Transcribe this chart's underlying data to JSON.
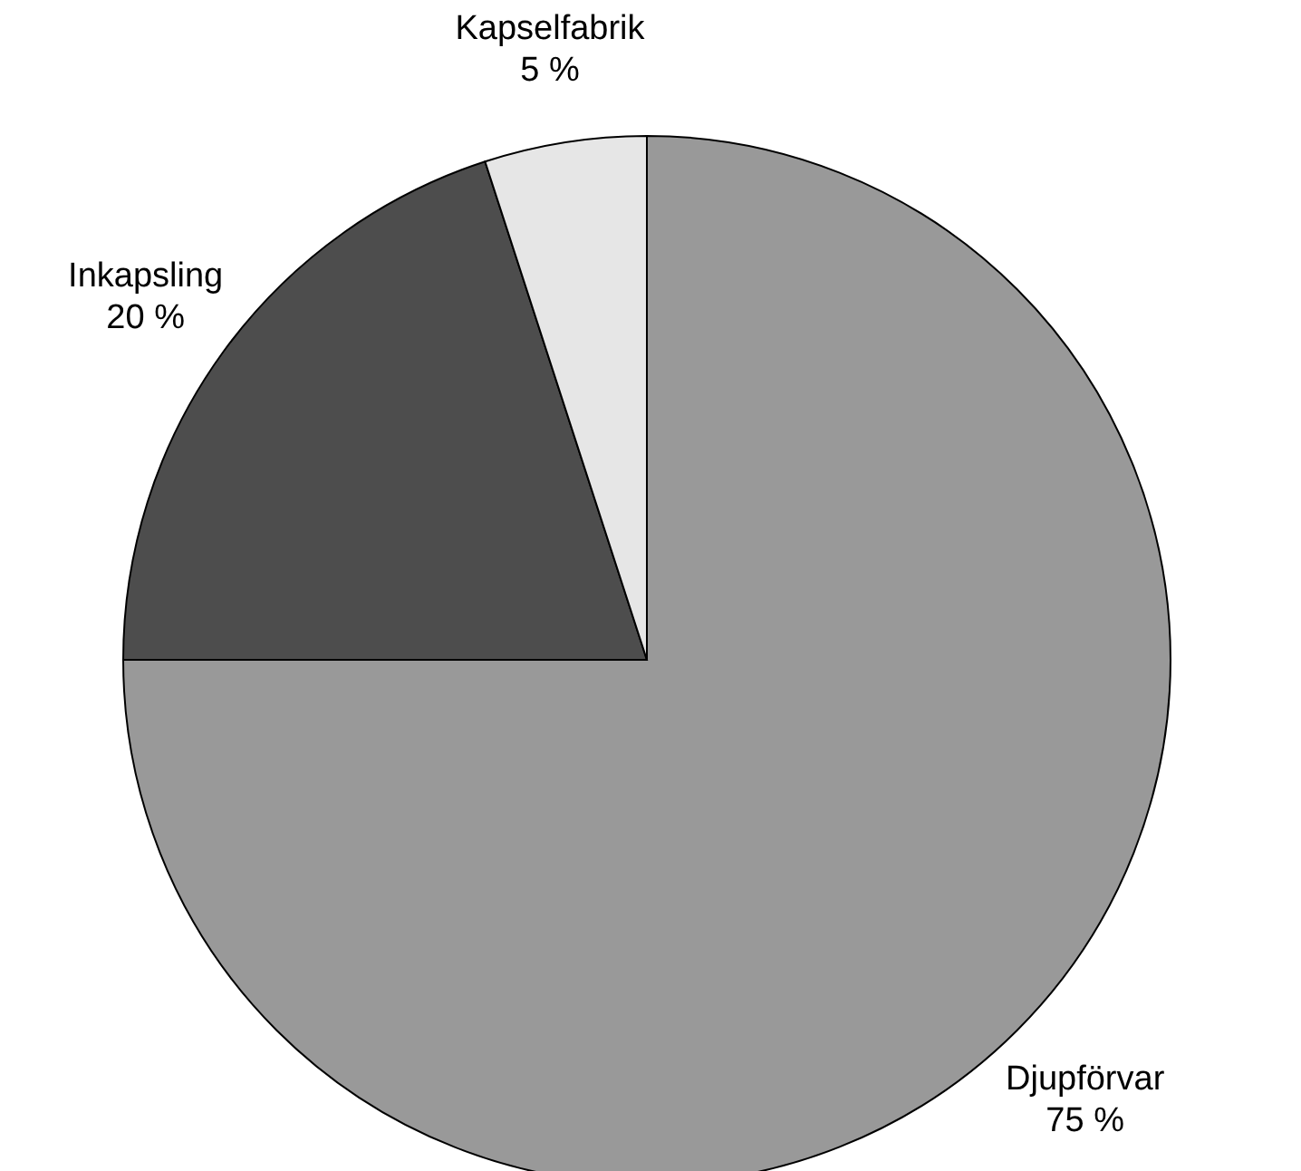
{
  "chart_data": {
    "type": "pie",
    "categories": [
      "Djupförvar",
      "Inkapsling",
      "Kapselfabrik"
    ],
    "values": [
      75,
      20,
      5
    ],
    "colors": [
      "#999999",
      "#4d4d4d",
      "#e6e6e6"
    ],
    "value_labels": [
      "75 %",
      "20 %",
      "5 %"
    ]
  }
}
